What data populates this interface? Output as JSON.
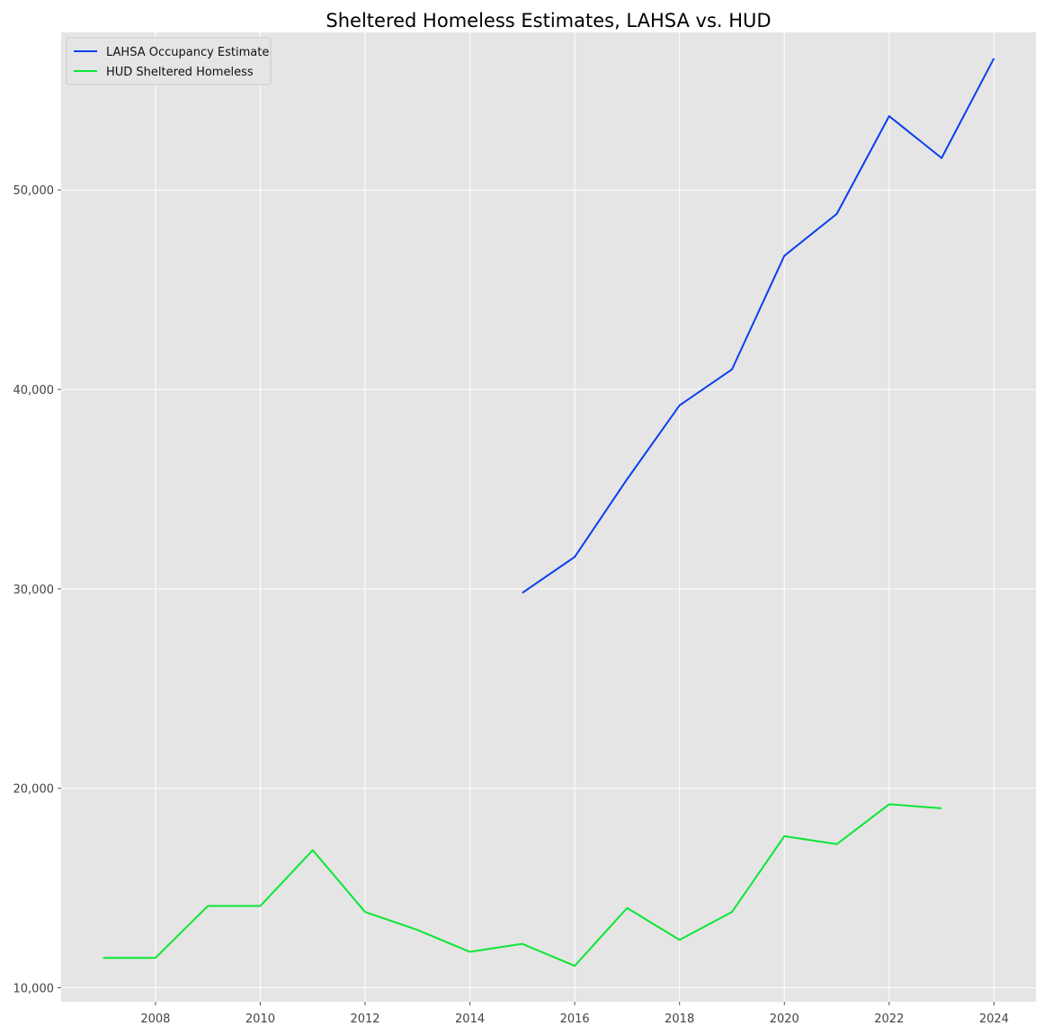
{
  "chart_data": {
    "type": "line",
    "title": "Sheltered Homeless Estimates, LAHSA vs. HUD",
    "xlabel": "",
    "ylabel": "",
    "xlim": [
      2006.2,
      2024.8
    ],
    "ylim": [
      9300,
      57900
    ],
    "x_ticks": [
      2008,
      2010,
      2012,
      2014,
      2016,
      2018,
      2020,
      2022,
      2024
    ],
    "y_ticks": [
      10000,
      20000,
      30000,
      40000,
      50000
    ],
    "y_tick_labels": [
      "10,000",
      "20,000",
      "30,000",
      "40,000",
      "50,000"
    ],
    "grid": true,
    "legend_position": "top-left",
    "background_color": "#e5e5e5",
    "series": [
      {
        "name": "LAHSA Occupancy Estimate",
        "color": "#0a3ff0",
        "x": [
          2015,
          2016,
          2017,
          2018,
          2019,
          2020,
          2021,
          2022,
          2023,
          2024
        ],
        "y": [
          29800,
          31600,
          35500,
          39200,
          41000,
          46700,
          48800,
          53700,
          51600,
          56600
        ]
      },
      {
        "name": "HUD Sheltered Homeless",
        "color": "#0ce634",
        "x": [
          2007,
          2008,
          2009,
          2010,
          2011,
          2012,
          2013,
          2014,
          2015,
          2016,
          2017,
          2018,
          2019,
          2020,
          2021,
          2022,
          2023
        ],
        "y": [
          11500,
          11500,
          14100,
          14100,
          16900,
          13800,
          12900,
          11800,
          12200,
          11100,
          14000,
          12400,
          13800,
          17600,
          17200,
          19200,
          19000
        ]
      }
    ]
  }
}
